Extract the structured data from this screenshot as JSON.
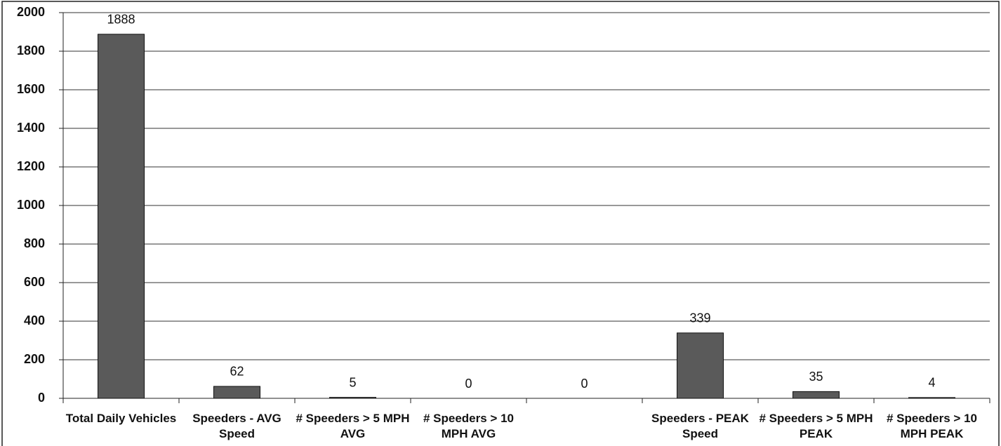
{
  "chart_data": {
    "type": "bar",
    "categories": [
      "Total Daily Vehicles",
      "Speeders - AVG Speed",
      "# Speeders > 5 MPH AVG",
      "# Speeders > 10 MPH AVG",
      null,
      "Speeders - PEAK Speed",
      "# Speeders > 5 MPH PEAK",
      "# Speeders > 10 MPH PEAK"
    ],
    "values": [
      1888,
      62,
      5,
      0,
      0,
      339,
      35,
      4
    ],
    "color": "#5a5a5a",
    "ylim": [
      0,
      2000
    ],
    "yticks": [
      0,
      200,
      400,
      600,
      800,
      1000,
      1200,
      1400,
      1600,
      1800,
      2000
    ],
    "grid": true
  }
}
